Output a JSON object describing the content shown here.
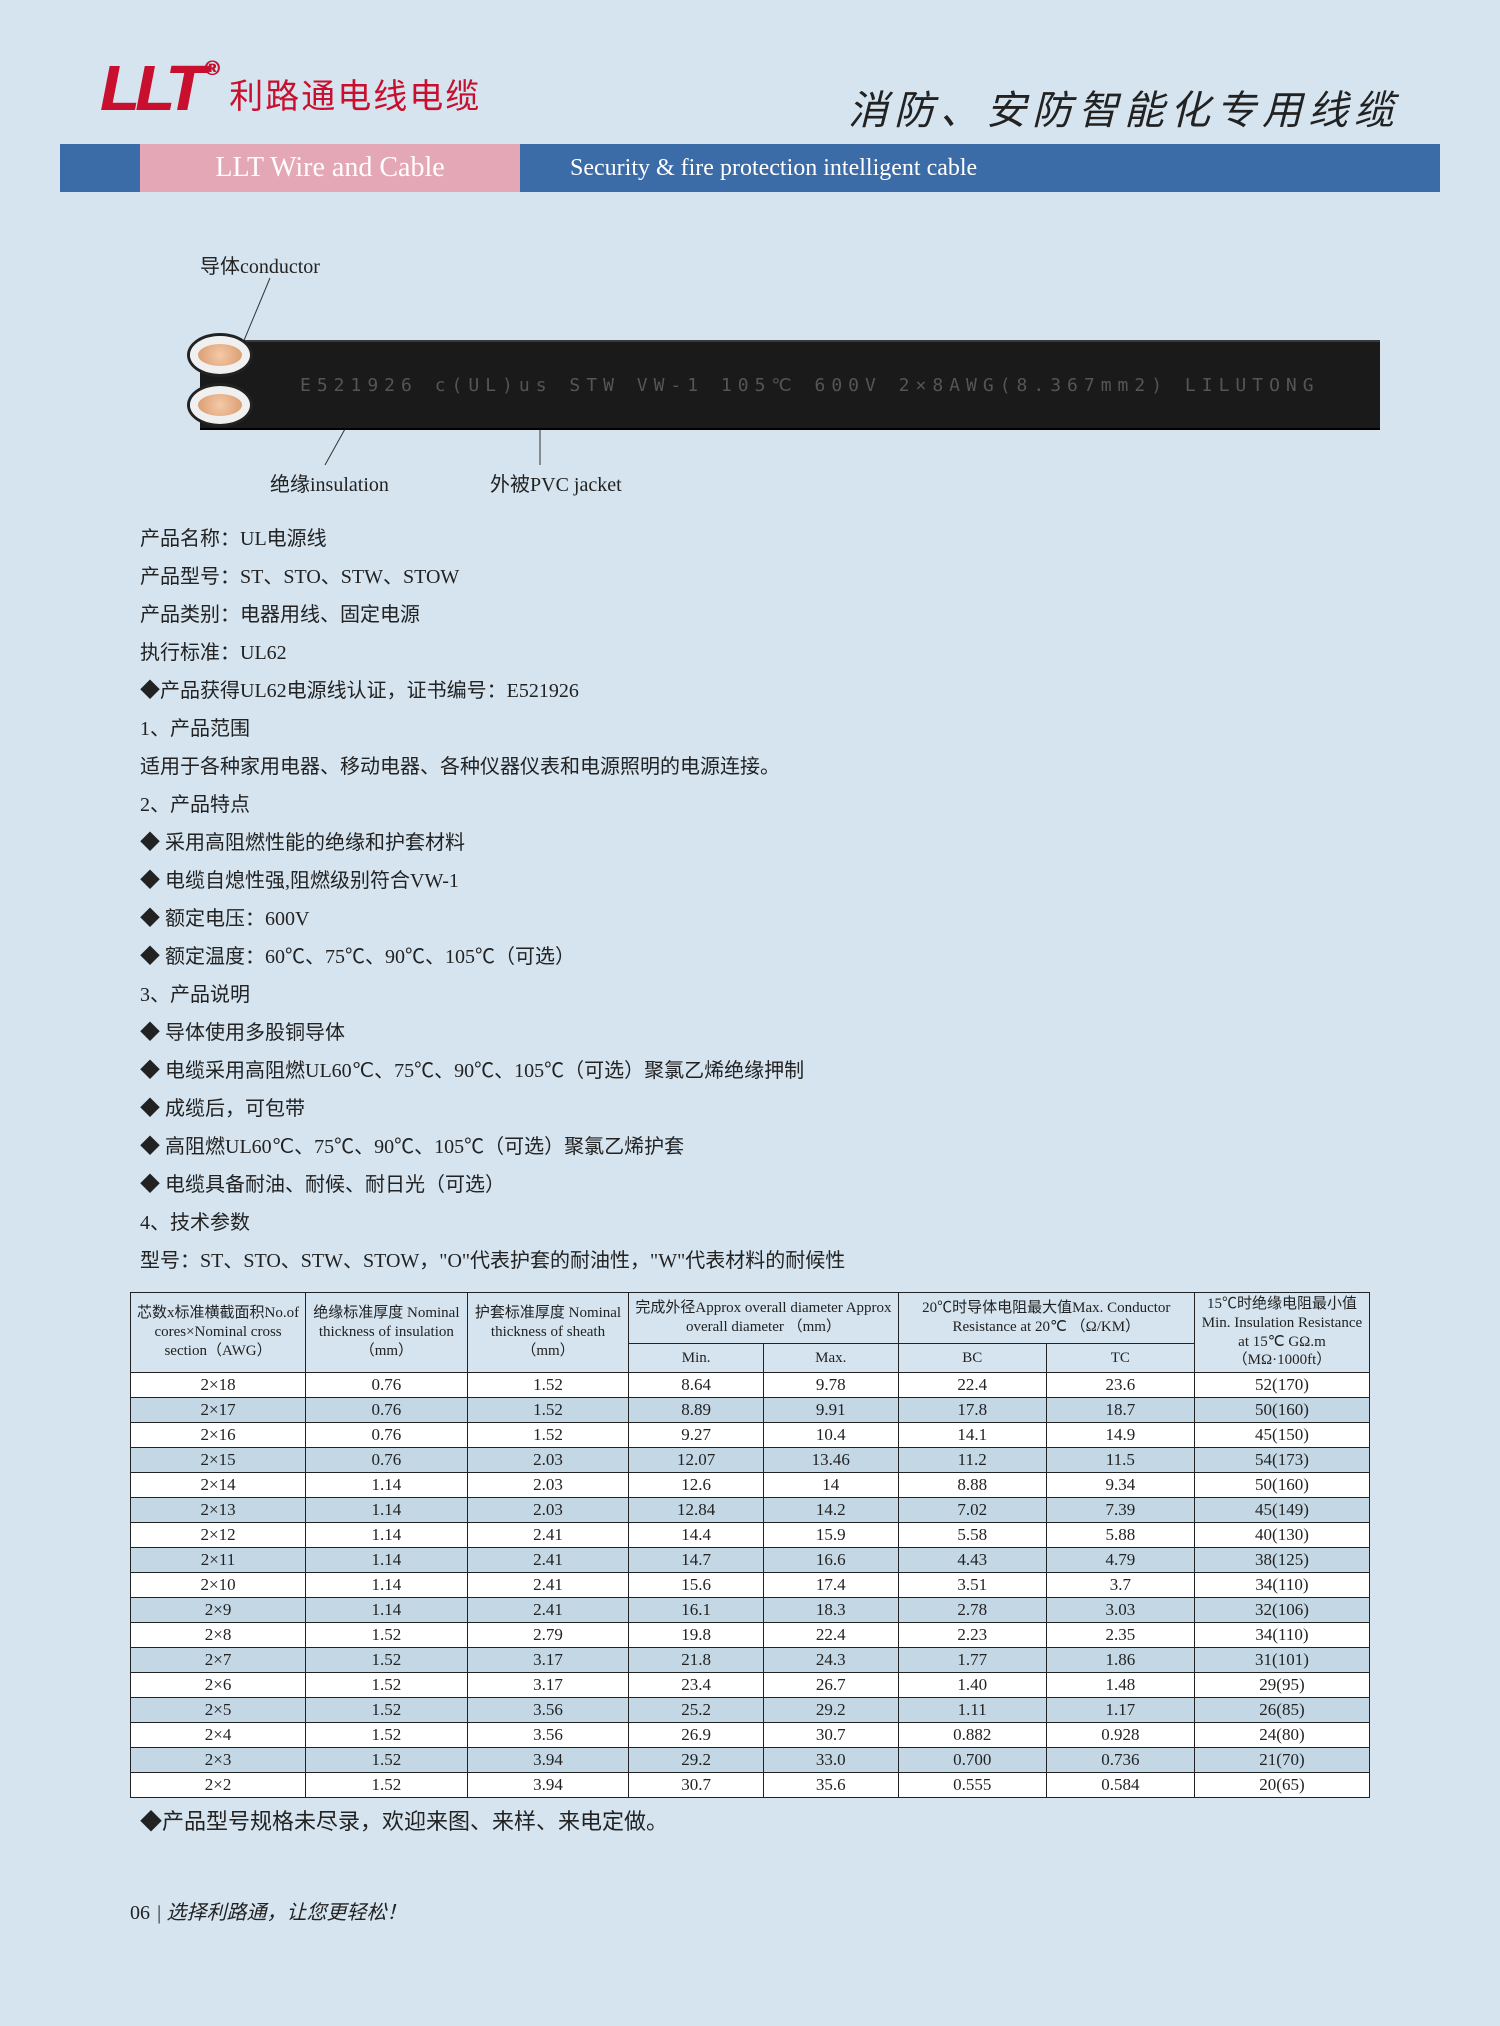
{
  "header": {
    "logo_text": "LLT",
    "logo_r": "®",
    "logo_cn": "利路通电线电缆",
    "subbar_pink": "LLT Wire and Cable",
    "subbar_right": "Security & fire protection intelligent cable",
    "title_cn": "消防、安防智能化专用线缆"
  },
  "figure": {
    "label_conductor": "导体conductor",
    "label_insulation": "绝缘insulation",
    "label_jacket": "外被PVC jacket",
    "cable_print": "E521926   c(UL)us   STW   VW-1   105℃   600V   2×8AWG(8.367mm2)   LILUTONG"
  },
  "info": {
    "l1": "产品名称：UL电源线",
    "l2": "产品型号：ST、STO、STW、STOW",
    "l3": "产品类别：电器用线、固定电源",
    "l4": "执行标准：UL62",
    "l5": "◆产品获得UL62电源线认证，证书编号：E521926"
  },
  "s1": {
    "title": "1、产品范围",
    "b1": "适用于各种家用电器、移动电器、各种仪器仪表和电源照明的电源连接。"
  },
  "s2": {
    "title": "2、产品特点",
    "b1": "采用高阻燃性能的绝缘和护套材料",
    "b2": "电缆自熄性强,阻燃级别符合VW-1",
    "b3": "额定电压：600V",
    "b4": "额定温度：60℃、75℃、90℃、105℃（可选）"
  },
  "s3": {
    "title": "3、产品说明",
    "b1": "导体使用多股铜导体",
    "b2": "电缆采用高阻燃UL60℃、75℃、90℃、105℃（可选）聚氯乙烯绝缘押制",
    "b3": "成缆后，可包带",
    "b4": "高阻燃UL60℃、75℃、90℃、105℃（可选）聚氯乙烯护套",
    "b5": "电缆具备耐油、耐候、耐日光（可选）"
  },
  "s4": {
    "title": "4、技术参数",
    "subtitle": "型号：ST、STO、STW、STOW，\"O\"代表护套的耐油性，\"W\"代表材料的耐候性"
  },
  "table": {
    "head": {
      "c1": "芯数x标准横截面积No.of cores×Nominal cross section（AWG）",
      "c2": "绝缘标准厚度 Nominal thickness of insulation（mm）",
      "c3": "护套标准厚度 Nominal thickness of sheath（mm）",
      "c4": "完成外径Approx overall diameter Approx overall diameter （mm）",
      "c4a": "Min.",
      "c4b": "Max.",
      "c5": "20℃时导体电阻最大值Max. Conductor Resistance at 20℃ （Ω/KM）",
      "c5a": "BC",
      "c5b": "TC",
      "c6": "15℃时绝缘电阻最小值Min. Insulation Resistance at 15℃ GΩ.m（MΩ·1000ft）"
    },
    "rows": [
      [
        "2×18",
        "0.76",
        "1.52",
        "8.64",
        "9.78",
        "22.4",
        "23.6",
        "52(170)"
      ],
      [
        "2×17",
        "0.76",
        "1.52",
        "8.89",
        "9.91",
        "17.8",
        "18.7",
        "50(160)"
      ],
      [
        "2×16",
        "0.76",
        "1.52",
        "9.27",
        "10.4",
        "14.1",
        "14.9",
        "45(150)"
      ],
      [
        "2×15",
        "0.76",
        "2.03",
        "12.07",
        "13.46",
        "11.2",
        "11.5",
        "54(173)"
      ],
      [
        "2×14",
        "1.14",
        "2.03",
        "12.6",
        "14",
        "8.88",
        "9.34",
        "50(160)"
      ],
      [
        "2×13",
        "1.14",
        "2.03",
        "12.84",
        "14.2",
        "7.02",
        "7.39",
        "45(149)"
      ],
      [
        "2×12",
        "1.14",
        "2.41",
        "14.4",
        "15.9",
        "5.58",
        "5.88",
        "40(130)"
      ],
      [
        "2×11",
        "1.14",
        "2.41",
        "14.7",
        "16.6",
        "4.43",
        "4.79",
        "38(125)"
      ],
      [
        "2×10",
        "1.14",
        "2.41",
        "15.6",
        "17.4",
        "3.51",
        "3.7",
        "34(110)"
      ],
      [
        "2×9",
        "1.14",
        "2.41",
        "16.1",
        "18.3",
        "2.78",
        "3.03",
        "32(106)"
      ],
      [
        "2×8",
        "1.52",
        "2.79",
        "19.8",
        "22.4",
        "2.23",
        "2.35",
        "34(110)"
      ],
      [
        "2×7",
        "1.52",
        "3.17",
        "21.8",
        "24.3",
        "1.77",
        "1.86",
        "31(101)"
      ],
      [
        "2×6",
        "1.52",
        "3.17",
        "23.4",
        "26.7",
        "1.40",
        "1.48",
        "29(95)"
      ],
      [
        "2×5",
        "1.52",
        "3.56",
        "25.2",
        "29.2",
        "1.11",
        "1.17",
        "26(85)"
      ],
      [
        "2×4",
        "1.52",
        "3.56",
        "26.9",
        "30.7",
        "0.882",
        "0.928",
        "24(80)"
      ],
      [
        "2×3",
        "1.52",
        "3.94",
        "29.2",
        "33.0",
        "0.700",
        "0.736",
        "21(70)"
      ],
      [
        "2×2",
        "1.52",
        "3.94",
        "30.7",
        "35.6",
        "0.555",
        "0.584",
        "20(65)"
      ]
    ]
  },
  "footer_note": "◆产品型号规格未尽录，欢迎来图、来样、来电定做。",
  "page_footer": {
    "num": "06",
    "slogan": "选择利路通，让您更轻松！"
  },
  "colors": {
    "page_bg": "#d5e4ef",
    "brand_red": "#c8102e",
    "bar_blue": "#3b6ca8",
    "bar_pink": "#e4a7b6",
    "row_alt": "#c3d7e5"
  }
}
